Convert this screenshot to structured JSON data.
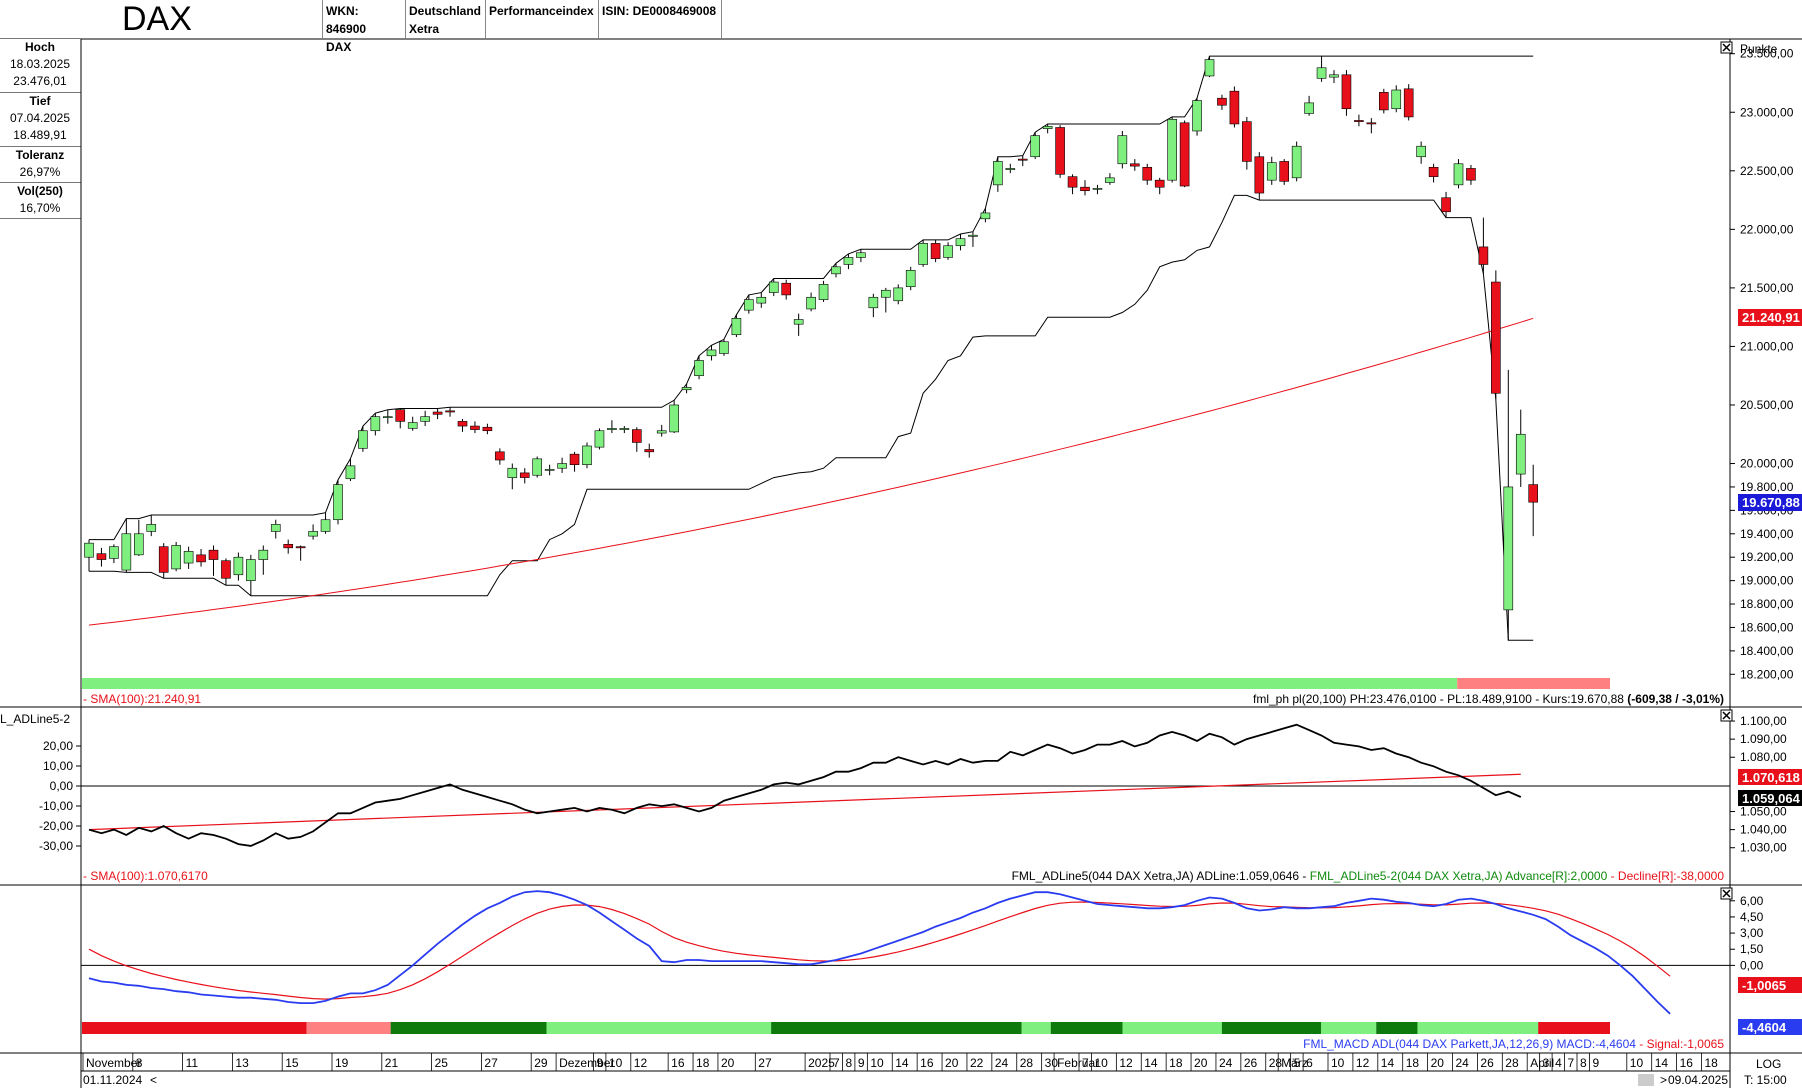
{
  "header": {
    "title": "DAX",
    "wkn": "WKN: 846900",
    "index_name": "DAX",
    "country": "Deutschland",
    "exchange": "Xetra",
    "index_type": "Performanceindex",
    "isin": "ISIN: DE0008469008"
  },
  "info_panel": [
    {
      "label": "Hoch",
      "values": [
        "18.03.2025",
        "23.476,01"
      ]
    },
    {
      "label": "Tief",
      "values": [
        "07.04.2025",
        "18.489,91"
      ]
    },
    {
      "label": "Toleranz",
      "values": [
        "26,97%"
      ]
    },
    {
      "label": "Vol(250)",
      "values": [
        "16,70%"
      ]
    }
  ],
  "colors": {
    "up": "#7ff07f",
    "down": "#e8101a",
    "sma": "#e8101a",
    "macd": "#2a3cf0",
    "signal": "#e8101a",
    "kurs_badge": "#1a1ad8"
  },
  "footer": {
    "start_date": "01.11.2024",
    "end_date": "09.04.2025",
    "log_label": "LOG",
    "time_label": "T: 15:00"
  },
  "chart_data": [
    {
      "type": "candlestick",
      "unit_label": "Punkte",
      "ylim": [
        18100,
        23600
      ],
      "y_ticks": [
        "23.500,00",
        "23.000,00",
        "22.500,00",
        "22.000,00",
        "21.500,00",
        "21.000,00",
        "20.500,00",
        "20.000,00",
        "19.800,00",
        "19.600,00",
        "19.400,00",
        "19.200,00",
        "19.000,00",
        "18.800,00",
        "18.600,00",
        "18.400,00",
        "18.200,00"
      ],
      "y_tick_values": [
        23500,
        23000,
        22500,
        22000,
        21500,
        21000,
        20500,
        20000,
        19800,
        19600,
        19400,
        19200,
        19000,
        18800,
        18600,
        18400,
        18200
      ],
      "last_sma_badge": "21.240,91",
      "last_price_badge": "19.670,88",
      "candles": [
        [
          19200,
          19320,
          19080,
          19350
        ],
        [
          19230,
          19180,
          19120,
          19280
        ],
        [
          19190,
          19290,
          19150,
          19310
        ],
        [
          19090,
          19400,
          19070,
          19530
        ],
        [
          19220,
          19400,
          19210,
          19520
        ],
        [
          19420,
          19480,
          19380,
          19560
        ],
        [
          19290,
          19070,
          19020,
          19320
        ],
        [
          19100,
          19300,
          19080,
          19330
        ],
        [
          19150,
          19250,
          19100,
          19290
        ],
        [
          19220,
          19160,
          19120,
          19270
        ],
        [
          19260,
          19180,
          19040,
          19300
        ],
        [
          19170,
          19020,
          18960,
          19190
        ],
        [
          19050,
          19200,
          19000,
          19240
        ],
        [
          19000,
          19180,
          18870,
          19220
        ],
        [
          19180,
          19260,
          19050,
          19300
        ],
        [
          19420,
          19480,
          19360,
          19520
        ],
        [
          19310,
          19280,
          19230,
          19350
        ],
        [
          19290,
          19280,
          19170,
          19300
        ],
        [
          19380,
          19420,
          19350,
          19480
        ],
        [
          19420,
          19520,
          19400,
          19580
        ],
        [
          19520,
          19820,
          19480,
          19860
        ],
        [
          19870,
          19980,
          19850,
          20040
        ],
        [
          20130,
          20280,
          20100,
          20320
        ],
        [
          20280,
          20400,
          20240,
          20430
        ],
        [
          20400,
          20400,
          20340,
          20460
        ],
        [
          20460,
          20360,
          20300,
          20470
        ],
        [
          20300,
          20350,
          20280,
          20400
        ],
        [
          20360,
          20400,
          20320,
          20450
        ],
        [
          20440,
          20420,
          20380,
          20470
        ],
        [
          20450,
          20440,
          20400,
          20480
        ],
        [
          20360,
          20320,
          20270,
          20380
        ],
        [
          20320,
          20290,
          20260,
          20360
        ],
        [
          20310,
          20280,
          20250,
          20340
        ],
        [
          20100,
          20030,
          19990,
          20130
        ],
        [
          19880,
          19960,
          19780,
          20000
        ],
        [
          19920,
          19880,
          19830,
          19960
        ],
        [
          19900,
          20040,
          19880,
          20060
        ],
        [
          19950,
          19950,
          19900,
          19990
        ],
        [
          19960,
          20000,
          19920,
          20050
        ],
        [
          20080,
          19990,
          19930,
          20100
        ],
        [
          19990,
          20150,
          19960,
          20180
        ],
        [
          20140,
          20280,
          20120,
          20300
        ],
        [
          20290,
          20300,
          20260,
          20370
        ],
        [
          20290,
          20300,
          20260,
          20320
        ],
        [
          20290,
          20180,
          20100,
          20310
        ],
        [
          20120,
          20100,
          20050,
          20170
        ],
        [
          20260,
          20280,
          20230,
          20330
        ],
        [
          20270,
          20500,
          20260,
          20540
        ],
        [
          20630,
          20650,
          20600,
          20680
        ],
        [
          20750,
          20880,
          20720,
          20920
        ],
        [
          20920,
          20970,
          20880,
          21010
        ],
        [
          20940,
          21040,
          20920,
          21060
        ],
        [
          21100,
          21240,
          21080,
          21270
        ],
        [
          21310,
          21400,
          21280,
          21440
        ],
        [
          21370,
          21420,
          21330,
          21460
        ],
        [
          21460,
          21550,
          21430,
          21580
        ],
        [
          21540,
          21440,
          21400,
          21570
        ],
        [
          21190,
          21230,
          21090,
          21280
        ],
        [
          21320,
          21420,
          21300,
          21460
        ],
        [
          21400,
          21530,
          21380,
          21560
        ],
        [
          21620,
          21680,
          21590,
          21710
        ],
        [
          21700,
          21760,
          21660,
          21790
        ],
        [
          21760,
          21800,
          21720,
          21830
        ],
        [
          21330,
          21420,
          21250,
          21450
        ],
        [
          21420,
          21480,
          21290,
          21500
        ],
        [
          21390,
          21500,
          21360,
          21530
        ],
        [
          21510,
          21650,
          21480,
          21680
        ],
        [
          21700,
          21880,
          21680,
          21910
        ],
        [
          21880,
          21750,
          21720,
          21910
        ],
        [
          21760,
          21860,
          21740,
          21890
        ],
        [
          21860,
          21920,
          21820,
          21960
        ],
        [
          21940,
          21950,
          21850,
          21980
        ],
        [
          22090,
          22140,
          22060,
          22180
        ],
        [
          22380,
          22580,
          22320,
          22620
        ],
        [
          22510,
          22520,
          22480,
          22560
        ],
        [
          22600,
          22590,
          22540,
          22630
        ],
        [
          22620,
          22800,
          22600,
          22830
        ],
        [
          22860,
          22880,
          22820,
          22900
        ],
        [
          22870,
          22470,
          22440,
          22890
        ],
        [
          22450,
          22360,
          22300,
          22470
        ],
        [
          22360,
          22330,
          22290,
          22420
        ],
        [
          22350,
          22350,
          22300,
          22380
        ],
        [
          22400,
          22440,
          22380,
          22480
        ],
        [
          22560,
          22800,
          22520,
          22840
        ],
        [
          22560,
          22540,
          22500,
          22600
        ],
        [
          22530,
          22420,
          22380,
          22560
        ],
        [
          22420,
          22360,
          22300,
          22440
        ],
        [
          22420,
          22940,
          22400,
          22960
        ],
        [
          22910,
          22370,
          22360,
          22930
        ],
        [
          22840,
          23100,
          22800,
          23120
        ],
        [
          23310,
          23450,
          23300,
          23480
        ],
        [
          23120,
          23060,
          23020,
          23150
        ],
        [
          23180,
          22900,
          22870,
          23220
        ],
        [
          22920,
          22580,
          22510,
          22960
        ],
        [
          22620,
          22310,
          22250,
          22660
        ],
        [
          22420,
          22570,
          22380,
          22620
        ],
        [
          22580,
          22410,
          22380,
          22600
        ],
        [
          22440,
          22710,
          22410,
          22750
        ],
        [
          22990,
          23080,
          22970,
          23140
        ],
        [
          23290,
          23380,
          23260,
          23480
        ],
        [
          23300,
          23320,
          23250,
          23360
        ],
        [
          23320,
          23030,
          22970,
          23360
        ],
        [
          22930,
          22920,
          22880,
          22980
        ],
        [
          22910,
          22900,
          22820,
          22950
        ],
        [
          23170,
          23020,
          22990,
          23200
        ],
        [
          23030,
          23190,
          23000,
          23230
        ],
        [
          23200,
          22960,
          22930,
          23240
        ],
        [
          22620,
          22710,
          22560,
          22750
        ],
        [
          22530,
          22450,
          22400,
          22560
        ],
        [
          22270,
          22150,
          22100,
          22320
        ],
        [
          22380,
          22560,
          22350,
          22600
        ],
        [
          22520,
          22420,
          22380,
          22550
        ],
        [
          21850,
          21700,
          21620,
          22100
        ],
        [
          21550,
          20600,
          20550,
          21650
        ],
        [
          18750,
          19800,
          18490,
          20800
        ],
        [
          19910,
          20250,
          19800,
          20460
        ],
        [
          19820,
          19670,
          19380,
          19990
        ]
      ]
    },
    {
      "type": "line",
      "series_label": "L_ADLine5-2",
      "left_ticks": [
        "20,00",
        "10,00",
        "0,00",
        "-10,00",
        "-20,00",
        "-30,00"
      ],
      "left_tick_values": [
        20,
        10,
        0,
        -10,
        -20,
        -30
      ],
      "right_ticks": [
        "1.100,00",
        "1.090,00",
        "1.080,00",
        "1.050,00",
        "1.040,00",
        "1.030,00"
      ],
      "right_tick_values": [
        1100,
        1090,
        1080,
        1050,
        1040,
        1030
      ],
      "right_ylim": [
        1021,
        1105
      ],
      "sma_badge": "1.070,618",
      "line_badge": "1.059,064",
      "adline": [
        1040,
        1038,
        1040,
        1037,
        1041,
        1039,
        1042,
        1038,
        1035,
        1038,
        1037,
        1035,
        1032,
        1031,
        1034,
        1038,
        1035,
        1036,
        1039,
        1044,
        1049,
        1049,
        1052,
        1055,
        1056,
        1057,
        1059,
        1061,
        1063,
        1065,
        1062,
        1060,
        1058,
        1056,
        1054,
        1051,
        1049,
        1050,
        1051,
        1052,
        1050,
        1052,
        1051,
        1049,
        1052,
        1054,
        1053,
        1054,
        1052,
        1050,
        1052,
        1056,
        1058,
        1060,
        1062,
        1065,
        1066,
        1065,
        1067,
        1069,
        1072,
        1072,
        1074,
        1077,
        1077,
        1080,
        1078,
        1076,
        1078,
        1076,
        1079,
        1077,
        1078,
        1078,
        1083,
        1081,
        1084,
        1087,
        1085,
        1082,
        1084,
        1087,
        1087,
        1089,
        1086,
        1088,
        1092,
        1094,
        1092,
        1089,
        1093,
        1091,
        1087,
        1090,
        1092,
        1094,
        1096,
        1098,
        1095,
        1092,
        1088,
        1087,
        1086,
        1084,
        1085,
        1082,
        1080,
        1077,
        1075,
        1072,
        1070,
        1067,
        1063,
        1059,
        1061,
        1058
      ],
      "sma_start": 1040,
      "sma_end": 1070.6
    },
    {
      "type": "line",
      "right_ticks": [
        "6,00",
        "4,50",
        "3,00",
        "1,50",
        "0,00"
      ],
      "right_tick_values": [
        6,
        4.5,
        3,
        1.5,
        0
      ],
      "right_ylim": [
        -6,
        7
      ],
      "signal_badge": "-1,0065",
      "macd_badge": "-4,4604",
      "macd": [
        -1.2,
        -1.5,
        -1.6,
        -1.8,
        -1.9,
        -2.1,
        -2.2,
        -2.4,
        -2.5,
        -2.7,
        -2.8,
        -2.9,
        -3.0,
        -3.0,
        -3.1,
        -3.2,
        -3.4,
        -3.5,
        -3.5,
        -3.3,
        -2.9,
        -2.6,
        -2.6,
        -2.3,
        -1.8,
        -0.9,
        0.0,
        1.0,
        2.0,
        2.9,
        3.8,
        4.6,
        5.3,
        5.8,
        6.4,
        6.8,
        6.9,
        6.8,
        6.5,
        6.1,
        5.6,
        4.9,
        4.1,
        3.3,
        2.5,
        1.8,
        0.4,
        0.3,
        0.5,
        0.5,
        0.4,
        0.4,
        0.4,
        0.4,
        0.4,
        0.3,
        0.2,
        0.1,
        0.1,
        0.3,
        0.5,
        0.8,
        1.1,
        1.5,
        1.9,
        2.3,
        2.7,
        3.1,
        3.6,
        4.0,
        4.4,
        4.9,
        5.3,
        5.8,
        6.2,
        6.5,
        6.8,
        6.8,
        6.6,
        6.3,
        6.0,
        5.7,
        5.6,
        5.5,
        5.4,
        5.3,
        5.3,
        5.4,
        5.6,
        6.0,
        6.3,
        6.2,
        5.8,
        5.3,
        5.1,
        5.2,
        5.4,
        5.3,
        5.3,
        5.4,
        5.5,
        5.8,
        6.0,
        6.2,
        6.1,
        5.9,
        5.8,
        5.6,
        5.5,
        5.7,
        6.1,
        6.2,
        6.0,
        5.7,
        5.3,
        5.0,
        4.7,
        4.3,
        3.6,
        2.8,
        2.2,
        1.6,
        0.9,
        0.0,
        -1.0,
        -2.2,
        -3.4,
        -4.5
      ],
      "signal_start": 1.5,
      "signal_end": -1.0
    }
  ],
  "status_bar": [
    {
      "color": "#7ff07f",
      "from": 0,
      "to": 0.9
    },
    {
      "color": "#ff8080",
      "from": 0.9,
      "to": 1
    }
  ],
  "macd_bar": [
    {
      "color": "#e8101a",
      "from": 0,
      "to": 0.147
    },
    {
      "color": "#ff8080",
      "from": 0.147,
      "to": 0.202
    },
    {
      "color": "#0e7a0e",
      "from": 0.202,
      "to": 0.304
    },
    {
      "color": "#7ff07f",
      "from": 0.304,
      "to": 0.451
    },
    {
      "color": "#0e7a0e",
      "from": 0.451,
      "to": 0.615
    },
    {
      "color": "#7ff07f",
      "from": 0.615,
      "to": 0.634
    },
    {
      "color": "#0e7a0e",
      "from": 0.634,
      "to": 0.681
    },
    {
      "color": "#7ff07f",
      "from": 0.681,
      "to": 0.746
    },
    {
      "color": "#0e7a0e",
      "from": 0.746,
      "to": 0.811
    },
    {
      "color": "#7ff07f",
      "from": 0.811,
      "to": 0.847
    },
    {
      "color": "#0e7a0e",
      "from": 0.847,
      "to": 0.874
    },
    {
      "color": "#7ff07f",
      "from": 0.874,
      "to": 0.953
    },
    {
      "color": "#e8101a",
      "from": 0.953,
      "to": 1
    }
  ],
  "legends": {
    "main_left": "- SMA(100):21.240,91",
    "main_right_prefix": "fml_ph pl(20,100) PH:23.476,0100 - PL:18.489,9100 - Kurs:19.670,88 ",
    "main_right_bold": "(-609,38 / -3,01%)",
    "ad_left": "- SMA(100):1.070,6170",
    "ad_right_1": "FML_ADLine5(044 DAX Xetra,JA) ADLine:1.059,0646 - ",
    "ad_right_2": "FML_ADLine5-2(044 DAX Xetra,JA) Advance[R]:2,0000",
    "ad_right_3": " - Decline[R]:-38,0000",
    "macd_right_1": "FML_MACD ADL(044 DAX Parkett,JA,12,26,9) MACD:-4,4604",
    "macd_right_2": " - Signal:-1,0065"
  },
  "x_axis": {
    "labels": [
      "November",
      "8",
      "11",
      "13",
      "15",
      "19",
      "21",
      "25",
      "27",
      "29",
      "Dezember",
      "9",
      "10",
      "12",
      "16",
      "18",
      "20",
      "27",
      "2025",
      "7",
      "8",
      "9",
      "10",
      "14",
      "16",
      "20",
      "22",
      "24",
      "28",
      "30",
      "Februar",
      "7",
      "10",
      "12",
      "14",
      "18",
      "20",
      "24",
      "26",
      "28",
      "März",
      "5",
      "6",
      "10",
      "12",
      "14",
      "18",
      "20",
      "24",
      "26",
      "28",
      "April",
      "3",
      "4",
      "7",
      "8",
      "9",
      "10",
      "14",
      "16",
      "18"
    ],
    "label_indices": [
      0,
      4,
      8,
      12,
      16,
      20,
      24,
      28,
      32,
      36,
      38,
      41,
      42,
      44,
      47,
      49,
      51,
      54,
      58,
      60,
      61,
      62,
      63,
      65,
      67,
      69,
      71,
      73,
      75,
      77,
      78,
      80,
      81,
      83,
      85,
      87,
      89,
      91,
      93,
      95,
      96,
      97,
      98,
      100,
      102,
      104,
      106,
      108,
      110,
      112,
      114,
      116,
      117,
      118,
      119,
      120,
      121,
      124,
      126,
      128,
      130
    ]
  }
}
